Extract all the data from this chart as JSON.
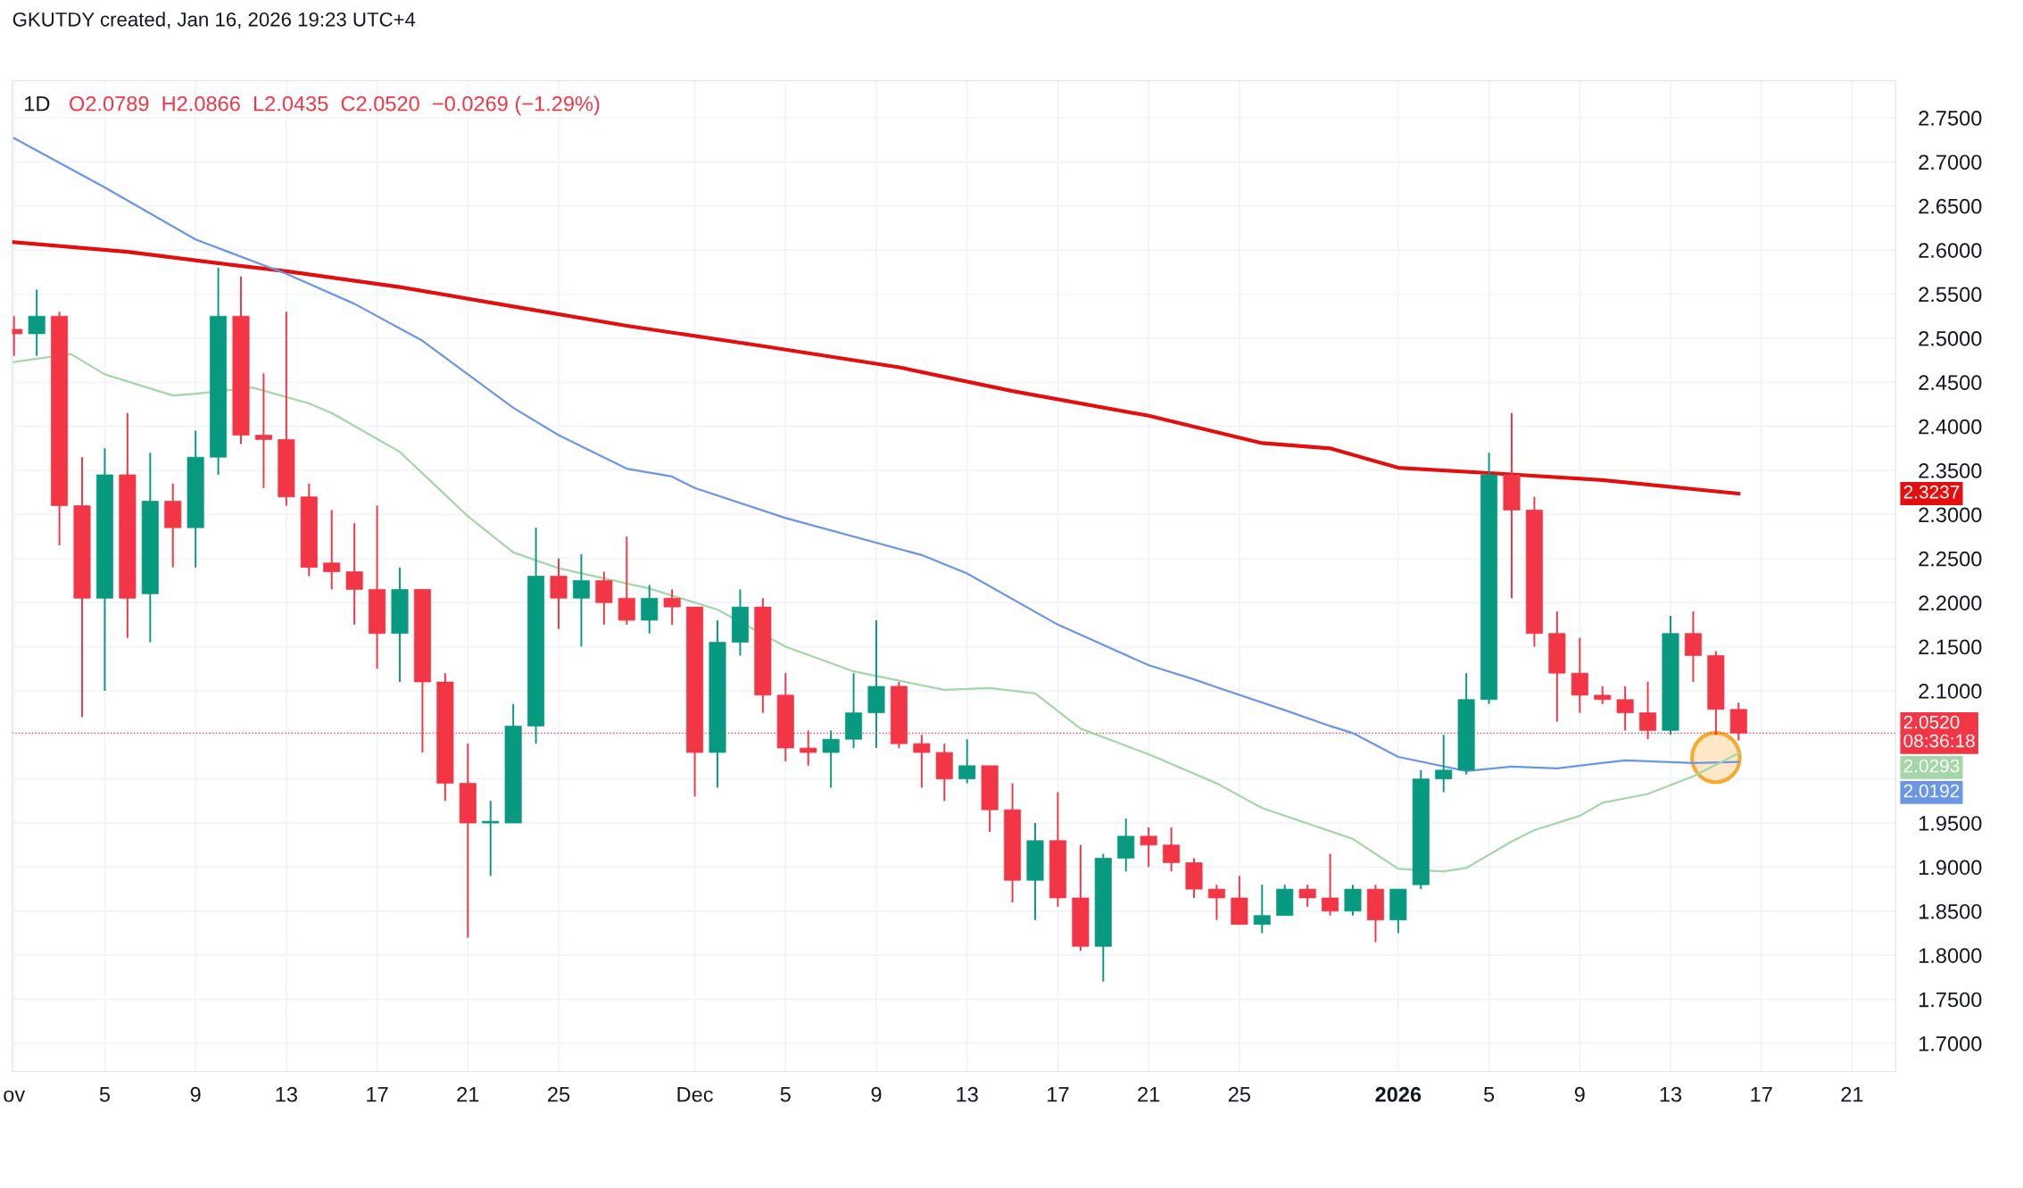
{
  "chart_data": {
    "type": "candlestick",
    "title": "1D",
    "subtitle": "O2.0789  H2.0866  L2.0435  C2.0520  −0.0269 (−1.29%)",
    "annotations": [
      "GKUTDY created, Jan 16, 2026 19:23 UTC+4",
      "2.3237",
      "2.0192",
      "2.0293"
    ],
    "x": [
      "2025-11-01",
      "2025-11-02",
      "2025-11-03",
      "2025-11-04",
      "2025-11-05",
      "2025-11-06",
      "2025-11-07",
      "2025-11-08",
      "2025-11-09",
      "2025-11-10",
      "2025-11-11",
      "2025-11-12",
      "2025-11-13",
      "2025-11-14",
      "2025-11-15",
      "2025-11-16",
      "2025-11-17",
      "2025-11-18",
      "2025-11-19",
      "2025-11-20",
      "2025-11-21",
      "2025-11-22",
      "2025-11-23",
      "2025-11-24",
      "2025-11-25",
      "2025-11-26",
      "2025-11-27",
      "2025-11-28",
      "2025-11-29",
      "2025-11-30",
      "2025-12-01",
      "2025-12-02",
      "2025-12-03",
      "2025-12-04",
      "2025-12-05",
      "2025-12-06",
      "2025-12-07",
      "2025-12-08",
      "2025-12-09",
      "2025-12-10",
      "2025-12-11",
      "2025-12-12",
      "2025-12-13",
      "2025-12-14",
      "2025-12-15",
      "2025-12-16",
      "2025-12-17",
      "2025-12-18",
      "2025-12-19",
      "2025-12-20",
      "2025-12-21",
      "2025-12-22",
      "2025-12-23",
      "2025-12-24",
      "2025-12-25",
      "2025-12-26",
      "2025-12-27",
      "2025-12-28",
      "2025-12-29",
      "2025-12-30",
      "2025-12-31",
      "2026-01-01",
      "2026-01-02",
      "2026-01-03",
      "2026-01-04",
      "2026-01-05",
      "2026-01-06",
      "2026-01-07",
      "2026-01-08",
      "2026-01-09",
      "2026-01-10",
      "2026-01-11",
      "2026-01-12",
      "2026-01-13",
      "2026-01-14",
      "2026-01-15",
      "2026-01-16"
    ],
    "ohlc": [
      [
        2.51,
        2.525,
        2.48,
        2.505
      ],
      [
        2.505,
        2.555,
        2.48,
        2.525
      ],
      [
        2.525,
        2.53,
        2.265,
        2.31
      ],
      [
        2.31,
        2.365,
        2.07,
        2.205
      ],
      [
        2.205,
        2.375,
        2.1,
        2.345
      ],
      [
        2.345,
        2.415,
        2.16,
        2.205
      ],
      [
        2.21,
        2.37,
        2.155,
        2.315
      ],
      [
        2.315,
        2.335,
        2.24,
        2.285
      ],
      [
        2.285,
        2.395,
        2.24,
        2.365
      ],
      [
        2.365,
        2.58,
        2.345,
        2.525
      ],
      [
        2.525,
        2.57,
        2.38,
        2.39
      ],
      [
        2.39,
        2.46,
        2.33,
        2.385
      ],
      [
        2.385,
        2.53,
        2.31,
        2.32
      ],
      [
        2.32,
        2.335,
        2.23,
        2.24
      ],
      [
        2.245,
        2.305,
        2.215,
        2.235
      ],
      [
        2.235,
        2.29,
        2.175,
        2.215
      ],
      [
        2.215,
        2.31,
        2.125,
        2.165
      ],
      [
        2.165,
        2.24,
        2.11,
        2.215
      ],
      [
        2.215,
        2.215,
        2.03,
        2.11
      ],
      [
        2.11,
        2.12,
        1.975,
        1.995
      ],
      [
        1.995,
        2.04,
        1.82,
        1.95
      ],
      [
        1.95,
        1.975,
        1.89,
        1.952
      ],
      [
        1.95,
        2.085,
        1.95,
        2.06
      ],
      [
        2.06,
        2.285,
        2.04,
        2.23
      ],
      [
        2.23,
        2.25,
        2.17,
        2.205
      ],
      [
        2.205,
        2.255,
        2.15,
        2.225
      ],
      [
        2.225,
        2.235,
        2.175,
        2.2
      ],
      [
        2.205,
        2.275,
        2.175,
        2.18
      ],
      [
        2.18,
        2.22,
        2.165,
        2.205
      ],
      [
        2.205,
        2.215,
        2.175,
        2.195
      ],
      [
        2.195,
        2.195,
        1.98,
        2.03
      ],
      [
        2.03,
        2.18,
        1.99,
        2.155
      ],
      [
        2.155,
        2.215,
        2.14,
        2.195
      ],
      [
        2.195,
        2.205,
        2.075,
        2.095
      ],
      [
        2.095,
        2.12,
        2.02,
        2.035
      ],
      [
        2.035,
        2.055,
        2.015,
        2.03
      ],
      [
        2.03,
        2.055,
        1.99,
        2.045
      ],
      [
        2.045,
        2.12,
        2.035,
        2.075
      ],
      [
        2.075,
        2.18,
        2.035,
        2.105
      ],
      [
        2.105,
        2.11,
        2.035,
        2.04
      ],
      [
        2.04,
        2.05,
        1.99,
        2.03
      ],
      [
        2.03,
        2.04,
        1.975,
        2.0
      ],
      [
        2.0,
        2.045,
        1.995,
        2.015
      ],
      [
        2.015,
        2.015,
        1.94,
        1.965
      ],
      [
        1.965,
        1.995,
        1.86,
        1.885
      ],
      [
        1.885,
        1.95,
        1.84,
        1.93
      ],
      [
        1.93,
        1.985,
        1.855,
        1.865
      ],
      [
        1.865,
        1.925,
        1.805,
        1.81
      ],
      [
        1.81,
        1.915,
        1.77,
        1.91
      ],
      [
        1.91,
        1.955,
        1.895,
        1.935
      ],
      [
        1.935,
        1.945,
        1.9,
        1.925
      ],
      [
        1.925,
        1.945,
        1.895,
        1.905
      ],
      [
        1.905,
        1.91,
        1.865,
        1.875
      ],
      [
        1.875,
        1.88,
        1.84,
        1.865
      ],
      [
        1.865,
        1.89,
        1.835,
        1.835
      ],
      [
        1.835,
        1.88,
        1.825,
        1.845
      ],
      [
        1.845,
        1.88,
        1.845,
        1.875
      ],
      [
        1.875,
        1.88,
        1.855,
        1.865
      ],
      [
        1.865,
        1.915,
        1.845,
        1.85
      ],
      [
        1.85,
        1.88,
        1.845,
        1.875
      ],
      [
        1.875,
        1.88,
        1.815,
        1.84
      ],
      [
        1.84,
        1.875,
        1.825,
        1.875
      ],
      [
        1.88,
        2.01,
        1.875,
        2.0
      ],
      [
        2.0,
        2.05,
        1.985,
        2.01
      ],
      [
        2.01,
        2.12,
        2.005,
        2.09
      ],
      [
        2.09,
        2.37,
        2.085,
        2.345
      ],
      [
        2.345,
        2.415,
        2.205,
        2.305
      ],
      [
        2.305,
        2.32,
        2.15,
        2.165
      ],
      [
        2.165,
        2.19,
        2.065,
        2.12
      ],
      [
        2.12,
        2.16,
        2.075,
        2.095
      ],
      [
        2.095,
        2.105,
        2.085,
        2.09
      ],
      [
        2.09,
        2.105,
        2.055,
        2.075
      ],
      [
        2.075,
        2.11,
        2.045,
        2.055
      ],
      [
        2.055,
        2.185,
        2.05,
        2.165
      ],
      [
        2.165,
        2.19,
        2.11,
        2.14
      ],
      [
        2.14,
        2.145,
        2.05,
        2.0789
      ],
      [
        2.0789,
        2.0866,
        2.0435,
        2.052
      ]
    ],
    "colors": [
      "#f23645",
      "#089981",
      "#f23645",
      "#f23645",
      "#089981",
      "#f23645",
      "#089981",
      "#f23645",
      "#089981",
      "#089981",
      "#f23645",
      "#f23645",
      "#f23645",
      "#f23645",
      "#f23645",
      "#f23645",
      "#f23645",
      "#089981",
      "#f23645",
      "#f23645",
      "#f23645",
      "#089981",
      "#089981",
      "#089981",
      "#f23645",
      "#089981",
      "#f23645",
      "#f23645",
      "#089981",
      "#f23645",
      "#f23645",
      "#089981",
      "#089981",
      "#f23645",
      "#f23645",
      "#f23645",
      "#089981",
      "#089981",
      "#089981",
      "#f23645",
      "#f23645",
      "#f23645",
      "#089981",
      "#f23645",
      "#f23645",
      "#089981",
      "#f23645",
      "#f23645",
      "#089981",
      "#089981",
      "#f23645",
      "#f23645",
      "#f23645",
      "#f23645",
      "#f23645",
      "#089981",
      "#089981",
      "#f23645",
      "#f23645",
      "#089981",
      "#f23645",
      "#089981",
      "#089981",
      "#089981",
      "#089981",
      "#089981",
      "#f23645",
      "#f23645",
      "#f23645",
      "#f23645",
      "#f23645",
      "#f23645",
      "#f23645",
      "#089981",
      "#f23645",
      "#f23645",
      "#f23645"
    ],
    "series": [
      {
        "type": "line",
        "color": "#e30e0e",
        "x": [
          "2025-11-01",
          "2025-11-06",
          "2025-11-10",
          "2025-11-13",
          "2025-11-18",
          "2025-11-23",
          "2025-11-28",
          "2025-12-04",
          "2025-12-10",
          "2025-12-15",
          "2025-12-21",
          "2025-12-26",
          "2025-12-29",
          "2026-01-01",
          "2026-01-05",
          "2026-01-10",
          "2026-01-16"
        ],
        "values": [
          2.609,
          2.598,
          2.585,
          2.576,
          2.558,
          2.536,
          2.514,
          2.491,
          2.467,
          2.44,
          2.412,
          2.381,
          2.375,
          2.353,
          2.347,
          2.339,
          2.3237
        ]
      },
      {
        "type": "line",
        "color": "#6b96e6",
        "x": [
          "2025-11-01",
          "2025-11-05",
          "2025-11-09",
          "2025-11-13",
          "2025-11-16",
          "2025-11-19",
          "2025-11-21",
          "2025-11-23",
          "2025-11-25",
          "2025-11-28",
          "2025-11-30",
          "2025-12-01",
          "2025-12-05",
          "2025-12-11",
          "2025-12-13",
          "2025-12-17",
          "2025-12-21",
          "2025-12-23",
          "2025-12-24",
          "2025-12-27",
          "2025-12-29",
          "2025-12-30",
          "2026-01-01",
          "2026-01-04",
          "2026-01-06",
          "2026-01-08",
          "2026-01-11",
          "2026-01-14",
          "2026-01-16"
        ],
        "values": [
          2.727,
          2.671,
          2.612,
          2.573,
          2.539,
          2.497,
          2.459,
          2.421,
          2.39,
          2.352,
          2.343,
          2.33,
          2.296,
          2.254,
          2.233,
          2.175,
          2.129,
          2.113,
          2.104,
          2.078,
          2.06,
          2.052,
          2.025,
          2.009,
          2.014,
          2.012,
          2.021,
          2.018,
          2.0192
        ]
      },
      {
        "type": "line",
        "color": "#a5d6a7",
        "x": [
          "2025-11-01",
          "2025-11-03T12:00",
          "2025-11-05",
          "2025-11-08",
          "2025-11-09",
          "2025-11-11T12:00",
          "2025-11-14",
          "2025-11-15",
          "2025-11-18",
          "2025-11-21",
          "2025-11-23",
          "2025-11-25",
          "2025-11-29",
          "2025-12-02",
          "2025-12-05",
          "2025-12-08",
          "2025-12-12",
          "2025-12-14",
          "2025-12-16",
          "2025-12-18",
          "2025-12-21",
          "2025-12-24",
          "2025-12-26",
          "2025-12-30",
          "2026-01-01",
          "2026-01-03",
          "2026-01-04",
          "2026-01-06",
          "2026-01-07",
          "2026-01-09",
          "2026-01-10",
          "2026-01-12",
          "2026-01-14",
          "2026-01-16"
        ],
        "values": [
          2.473,
          2.482,
          2.459,
          2.435,
          2.437,
          2.444,
          2.426,
          2.415,
          2.371,
          2.298,
          2.257,
          2.239,
          2.216,
          2.192,
          2.15,
          2.122,
          2.101,
          2.103,
          2.097,
          2.057,
          2.028,
          1.995,
          1.967,
          1.932,
          1.898,
          1.895,
          1.899,
          1.929,
          1.942,
          1.958,
          1.973,
          1.983,
          2.003,
          2.0293
        ]
      }
    ],
    "ref_lines": [
      {
        "axis": "y",
        "value": 2.052,
        "label": "2.0520\n08:36:18",
        "color": "#f23645",
        "line_style": "dotted"
      }
    ],
    "xlim": [
      "2025-10-31T22:00",
      "2026-01-22T22:00"
    ],
    "xticks": [
      {
        "value": "2025-11-01",
        "label": "ov"
      },
      {
        "value": "2025-11-05",
        "label": "5"
      },
      {
        "value": "2025-11-09",
        "label": "9"
      },
      {
        "value": "2025-11-13",
        "label": "13"
      },
      {
        "value": "2025-11-17",
        "label": "17"
      },
      {
        "value": "2025-11-21",
        "label": "21"
      },
      {
        "value": "2025-11-25",
        "label": "25"
      },
      {
        "value": "2025-12-01",
        "label": "Dec"
      },
      {
        "value": "2025-12-05",
        "label": "5"
      },
      {
        "value": "2025-12-09",
        "label": "9"
      },
      {
        "value": "2025-12-13",
        "label": "13"
      },
      {
        "value": "2025-12-17",
        "label": "17"
      },
      {
        "value": "2025-12-21",
        "label": "21"
      },
      {
        "value": "2025-12-25",
        "label": "25"
      },
      {
        "value": "2026-01-01",
        "label": "2026"
      },
      {
        "value": "2026-01-05",
        "label": "5"
      },
      {
        "value": "2026-01-09",
        "label": "9"
      },
      {
        "value": "2026-01-13",
        "label": "13"
      },
      {
        "value": "2026-01-17",
        "label": "17"
      },
      {
        "value": "2026-01-21",
        "label": "21"
      }
    ],
    "ylim": [
      1.668,
      2.792
    ],
    "yticks": [
      {
        "value": 1.7,
        "label": "1.7000"
      },
      {
        "value": 1.75,
        "label": "1.7500"
      },
      {
        "value": 1.8,
        "label": "1.8000"
      },
      {
        "value": 1.85,
        "label": "1.8500"
      },
      {
        "value": 1.9,
        "label": "1.9000"
      },
      {
        "value": 1.95,
        "label": "1.9500"
      },
      {
        "value": 2.0,
        "label": null
      },
      {
        "value": 2.05,
        "label": null
      },
      {
        "value": 2.1,
        "label": "2.1000"
      },
      {
        "value": 2.15,
        "label": "2.1500"
      },
      {
        "value": 2.2,
        "label": "2.2000"
      },
      {
        "value": 2.25,
        "label": "2.2500"
      },
      {
        "value": 2.3,
        "label": "2.3000"
      },
      {
        "value": 2.35,
        "label": "2.3500"
      },
      {
        "value": 2.4,
        "label": "2.4000"
      },
      {
        "value": 2.45,
        "label": "2.4500"
      },
      {
        "value": 2.5,
        "label": "2.5000"
      },
      {
        "value": 2.55,
        "label": "2.5500"
      },
      {
        "value": 2.6,
        "label": "2.6000"
      },
      {
        "value": 2.65,
        "label": "2.6500"
      },
      {
        "value": 2.7,
        "label": "2.7000"
      },
      {
        "value": 2.75,
        "label": "2.7500"
      }
    ],
    "grid": true
  }
}
